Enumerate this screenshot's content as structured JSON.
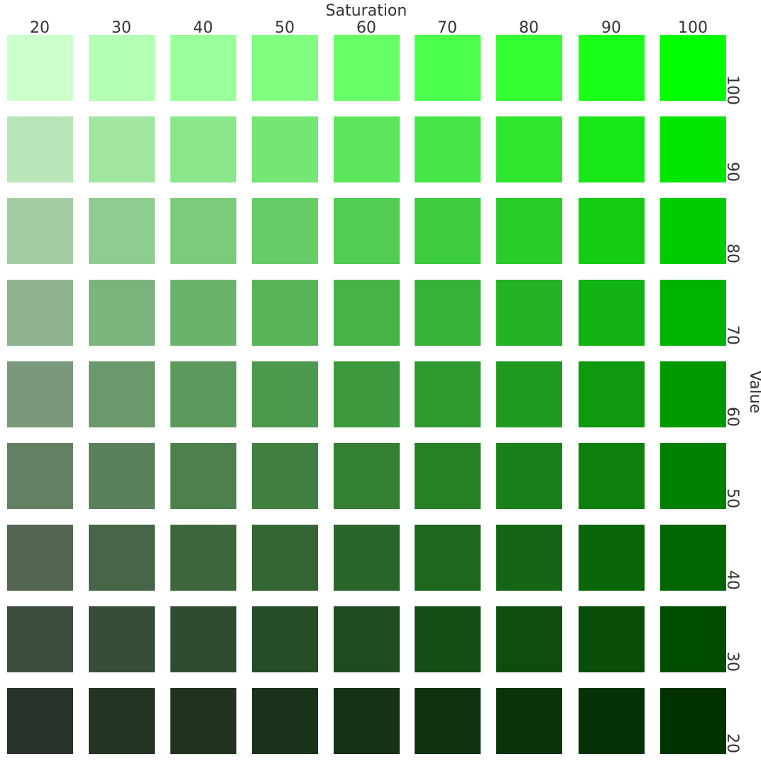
{
  "chart_data": {
    "type": "heatmap",
    "title": "",
    "xlabel": "Saturation",
    "ylabel": "Value",
    "x": [
      "20",
      "30",
      "40",
      "50",
      "60",
      "70",
      "80",
      "90",
      "100"
    ],
    "y": [
      "100",
      "90",
      "80",
      "70",
      "60",
      "50",
      "40",
      "30",
      "20"
    ],
    "hue": "green",
    "colors": [
      [
        "#ccffcc",
        "#b3ffb3",
        "#99ff99",
        "#80ff80",
        "#66ff66",
        "#4dff4d",
        "#33ff33",
        "#1aff1a",
        "#00ff00"
      ],
      [
        "#b8e6b8",
        "#a1e6a1",
        "#8ae68a",
        "#73e673",
        "#5ce65c",
        "#45e645",
        "#2ee62e",
        "#17e617",
        "#00e600"
      ],
      [
        "#a3cca3",
        "#8fcc8f",
        "#7acc7a",
        "#66cc66",
        "#52cc52",
        "#3dcc3d",
        "#29cc29",
        "#14cc14",
        "#00cc00"
      ],
      [
        "#8fb38f",
        "#7db37d",
        "#6bb36b",
        "#59b359",
        "#47b347",
        "#36b336",
        "#24b324",
        "#12b312",
        "#00b300"
      ],
      [
        "#7a997a",
        "#6b996b",
        "#5c995c",
        "#4d994d",
        "#3d993d",
        "#2e992e",
        "#1f991f",
        "#0f990f",
        "#009900"
      ],
      [
        "#668066",
        "#598059",
        "#4d804d",
        "#408040",
        "#338033",
        "#268026",
        "#1a801a",
        "#0d800d",
        "#008000"
      ],
      [
        "#526652",
        "#476647",
        "#3d663d",
        "#336633",
        "#296629",
        "#1f661f",
        "#146614",
        "#0a660a",
        "#006600"
      ],
      [
        "#3d4d3d",
        "#364d36",
        "#2e4d2e",
        "#264d26",
        "#1f4d1f",
        "#174d17",
        "#0f4d0f",
        "#084d08",
        "#004d00"
      ],
      [
        "#293329",
        "#243324",
        "#1f331f",
        "#1a331a",
        "#143314",
        "#0f330f",
        "#0a330a",
        "#053305",
        "#003300"
      ]
    ]
  }
}
